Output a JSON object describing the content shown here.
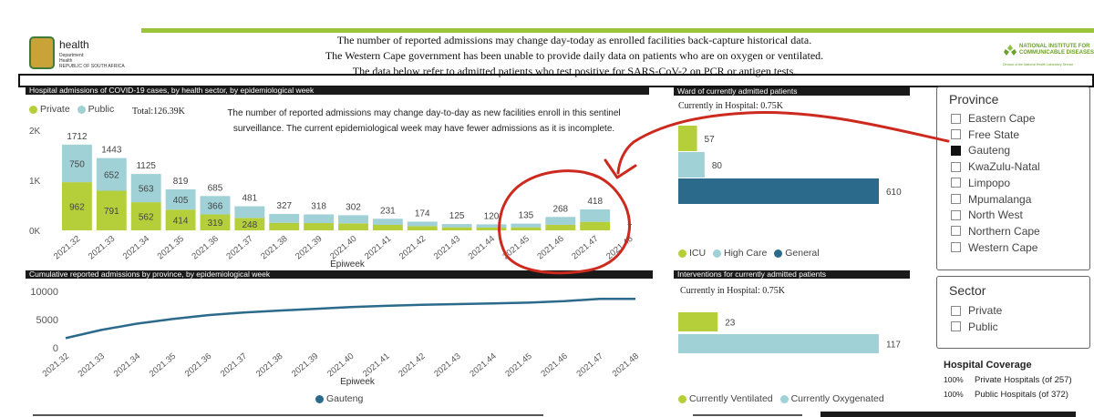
{
  "header": {
    "dept_logo": {
      "title": "health",
      "subtitle": "Department:\nHealth\nREPUBLIC OF SOUTH AFRICA"
    },
    "notices": [
      "The number of reported admissions may change day-today as enrolled facilities back-capture historical data.",
      "The Western Cape government has been unable to provide daily data on patients who are on oxygen or ventilated.",
      "The data below refer to admitted patients who test positive for SARS-CoV-2 on PCR or antigen tests."
    ],
    "nicd_logo": {
      "title": "NATIONAL INSTITUTE FOR COMMUNICABLE DISEASES",
      "subtitle": "Division of the National Health Laboratory Service"
    }
  },
  "colors": {
    "private": "#b5cf3b",
    "public": "#9fd1d6",
    "icu": "#b5cf3b",
    "high_care": "#9fd1d6",
    "general": "#2b6a8b",
    "gauteng": "#2b6a8b",
    "annotation": "#cc2a1e"
  },
  "admissions_panel": {
    "title": "Hospital admissions of COVID-19 cases, by health sector, by epidemiological week",
    "legend_private": "Private",
    "legend_public": "Public",
    "total": "Total:126.39K",
    "note": "The number of reported admissions may change day-to-day as new facilities enroll in this sentinel surveillance. The current epidemiological week may have fewer admissions as it is incomplete.",
    "xlabel": "Epiweek"
  },
  "cumulative_panel": {
    "title": "Cumulative reported admissions by province, by epidemiological week",
    "xlabel": "Epiweek",
    "legend": "Gauteng"
  },
  "ward_panel": {
    "title": "Ward of currently admitted patients",
    "current": "Currently in Hospital:",
    "current_value": "0.75K",
    "legend": [
      "ICU",
      "High Care",
      "General"
    ]
  },
  "interventions_panel": {
    "title": "Interventions for currently admitted patients",
    "current": "Currently in Hospital:",
    "current_value": "0.75K",
    "legend": [
      "Currently Ventilated",
      "Currently Oxygenated"
    ]
  },
  "province_slicer": {
    "title": "Province",
    "items": [
      {
        "label": "Eastern Cape",
        "checked": false
      },
      {
        "label": "Free State",
        "checked": false
      },
      {
        "label": "Gauteng",
        "checked": true
      },
      {
        "label": "KwaZulu-Natal",
        "checked": false
      },
      {
        "label": "Limpopo",
        "checked": false
      },
      {
        "label": "Mpumalanga",
        "checked": false
      },
      {
        "label": "North West",
        "checked": false
      },
      {
        "label": "Northern Cape",
        "checked": false
      },
      {
        "label": "Western Cape",
        "checked": false
      }
    ]
  },
  "sector_slicer": {
    "title": "Sector",
    "items": [
      {
        "label": "Private",
        "checked": false
      },
      {
        "label": "Public",
        "checked": false
      }
    ]
  },
  "coverage": {
    "title": "Hospital Coverage",
    "rows": [
      {
        "pct": "100%",
        "label": "Private Hospitals (of 257)"
      },
      {
        "pct": "100%",
        "label": "Public Hospitals (of 372)"
      }
    ]
  },
  "chart_data": [
    {
      "type": "bar",
      "stacked": true,
      "categories": [
        "2021.32",
        "2021.33",
        "2021.34",
        "2021.35",
        "2021.36",
        "2021.37",
        "2021.38",
        "2021.39",
        "2021.40",
        "2021.41",
        "2021.42",
        "2021.43",
        "2021.44",
        "2021.45",
        "2021.46",
        "2021.47",
        "2021.48"
      ],
      "series": [
        {
          "name": "Private",
          "values": [
            962,
            791,
            562,
            414,
            319,
            248,
            150,
            145,
            140,
            110,
            85,
            60,
            55,
            60,
            110,
            170,
            0
          ]
        },
        {
          "name": "Public",
          "values": [
            750,
            652,
            563,
            405,
            366,
            233,
            177,
            173,
            162,
            121,
            89,
            65,
            65,
            75,
            158,
            248,
            1
          ]
        }
      ],
      "totals": [
        1712,
        1443,
        1125,
        819,
        685,
        481,
        327,
        318,
        302,
        231,
        174,
        125,
        120,
        135,
        268,
        418,
        1
      ],
      "segment_labels": {
        "Private": [
          962,
          791,
          562,
          414,
          319,
          248,
          null,
          null,
          null,
          null,
          null,
          null,
          null,
          null,
          null,
          null,
          null
        ],
        "Public": [
          750,
          652,
          563,
          405,
          366,
          null,
          null,
          null,
          null,
          null,
          null,
          null,
          null,
          null,
          null,
          null,
          null
        ]
      },
      "yticks": [
        "0K",
        "1K",
        "2K"
      ],
      "ylim": [
        0,
        2000
      ],
      "xlabel": "Epiweek",
      "legend": "top-left"
    },
    {
      "type": "line",
      "x": [
        "2021.32",
        "2021.33",
        "2021.34",
        "2021.35",
        "2021.36",
        "2021.37",
        "2021.38",
        "2021.39",
        "2021.40",
        "2021.41",
        "2021.42",
        "2021.43",
        "2021.44",
        "2021.45",
        "2021.46",
        "2021.47",
        "2021.48"
      ],
      "series": [
        {
          "name": "Gauteng",
          "values": [
            1712,
            3155,
            4280,
            5099,
            5784,
            6265,
            6592,
            6910,
            7212,
            7443,
            7617,
            7742,
            7862,
            7997,
            8265,
            8683,
            8684
          ]
        }
      ],
      "yticks": [
        0,
        5000,
        10000
      ],
      "ylim": [
        0,
        10000
      ],
      "xlabel": "Epiweek",
      "legend": "bottom"
    },
    {
      "type": "bar",
      "orientation": "horizontal",
      "categories": [
        "ICU",
        "High Care",
        "General"
      ],
      "values": [
        57,
        80,
        610
      ]
    },
    {
      "type": "bar",
      "orientation": "horizontal",
      "categories": [
        "Currently Ventilated",
        "Currently Oxygenated"
      ],
      "values": [
        23,
        117
      ]
    }
  ]
}
